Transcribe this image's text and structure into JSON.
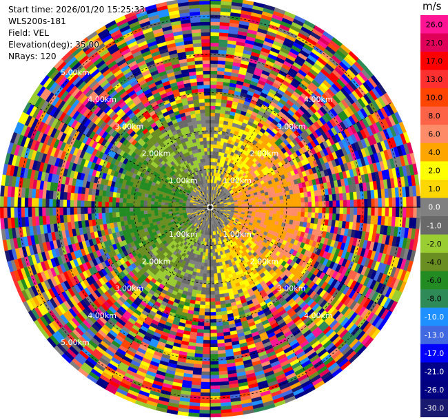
{
  "header": {
    "start_time": "Start time: 2026/01/20 15:25:33",
    "instrument": "WLS200s-181",
    "field": "Field: VEL",
    "elevation": "Elevation(deg): 35.00",
    "nrays": "NRays: 120"
  },
  "range_rings": {
    "labels": [
      "1.00km",
      "2.00km",
      "3.00km",
      "4.00km",
      "5.00km"
    ]
  },
  "colorbar": {
    "unit": "m/s",
    "ticks": [
      "26.0",
      "21.0",
      "17.0",
      "13.0",
      "10.0",
      "8.0",
      "6.0",
      "4.0",
      "2.0",
      "1.0",
      "0.0",
      "-1.0",
      "-2.0",
      "-4.0",
      "-6.0",
      "-8.0",
      "-10.0",
      "-13.0",
      "-17.0",
      "-21.0",
      "-26.0",
      "-30.0"
    ],
    "colors": [
      "#ff1493",
      "#e0005a",
      "#ff0000",
      "#ff3030",
      "#ff4500",
      "#ff6347",
      "#ff8c69",
      "#ffa500",
      "#ffff00",
      "#ffd700",
      "#808080",
      "#696969",
      "#9acd32",
      "#6b8e23",
      "#228b22",
      "#2e8b57",
      "#1e90ff",
      "#4169e1",
      "#0000ff",
      "#00008b",
      "#000080",
      "#191970"
    ]
  },
  "ppi": {
    "n_rays": 120,
    "n_gates": 60,
    "max_range_km": 5.5
  }
}
